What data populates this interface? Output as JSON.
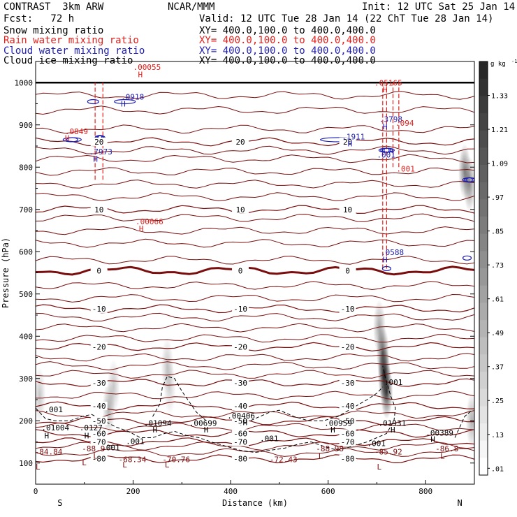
{
  "header": {
    "model": "CONTRAST  3km ARW",
    "org": "NCAR/MMM",
    "init": "Init: 12 UTC Sat 25 Jan 14",
    "fcst": "Fcst:   72 h",
    "valid": "Valid: 12 UTC Tue 28 Jan 14 (22 ChT Tue 28 Jan 14)",
    "fields": [
      {
        "label": "Snow mixing ratio",
        "xy": "XY= 400.0,100.0 to 400.0,400.0",
        "color": "#000000"
      },
      {
        "label": "Rain water mixing ratio",
        "xy": "XY= 400.0,100.0 to 400.0,400.0",
        "color": "#e0201c"
      },
      {
        "label": "Cloud water mixing ratio",
        "xy": "XY= 400.0,100.0 to 400.0,400.0",
        "color": "#1e1eb4"
      },
      {
        "label": "Cloud ice mixing ratio",
        "xy": "XY= 400.0,100.0 to 400.0,400.0",
        "color": "#000000"
      }
    ]
  },
  "chart_data": {
    "type": "heatmap",
    "title": "",
    "xlabel": "Distance (km)",
    "ylabel": "Pressure (hPa)",
    "xlim": [
      0,
      900
    ],
    "ylim": [
      1050,
      50
    ],
    "x_ticks": [
      0,
      200,
      400,
      600,
      800
    ],
    "y_ticks": [
      100,
      200,
      300,
      400,
      500,
      600,
      700,
      800,
      900,
      1000
    ],
    "x_end_labels": {
      "left": "S",
      "right": "N"
    },
    "colorbar": {
      "unit": "g kg",
      "unit_sup": "-1",
      "levels": [
        "1.33",
        "1.21",
        "1.09",
        ".97",
        ".85",
        ".73",
        ".61",
        ".49",
        ".37",
        ".25",
        ".13",
        ".01"
      ]
    },
    "colors": {
      "temperature": "#7a0e0e",
      "rain": "#e0201c",
      "cloud_water": "#1e1eb4",
      "ice": "#000000"
    },
    "snow_shading": [
      {
        "x": 715,
        "p": 310,
        "intensity": 0.95
      },
      {
        "x": 720,
        "p": 270,
        "intensity": 0.85
      },
      {
        "x": 712,
        "p": 360,
        "intensity": 0.7
      },
      {
        "x": 705,
        "p": 420,
        "intensity": 0.4
      },
      {
        "x": 150,
        "p": 230,
        "intensity": 0.35
      },
      {
        "x": 160,
        "p": 280,
        "intensity": 0.25
      },
      {
        "x": 270,
        "p": 330,
        "intensity": 0.25
      },
      {
        "x": 275,
        "p": 280,
        "intensity": 0.2
      },
      {
        "x": 8,
        "p": 260,
        "intensity": 0.25
      },
      {
        "x": 895,
        "p": 200,
        "intensity": 0.35
      },
      {
        "x": 880,
        "p": 790,
        "intensity": 0.55
      },
      {
        "x": 890,
        "p": 760,
        "intensity": 0.5
      }
    ],
    "temperature_isotherms": [
      {
        "label": "-80",
        "p": 110,
        "heavy": false
      },
      {
        "label": "-70",
        "p": 150,
        "heavy": false
      },
      {
        "label": "-60",
        "p": 170,
        "heavy": false
      },
      {
        "label": "-50",
        "p": 200,
        "heavy": false
      },
      {
        "label": "-40",
        "p": 235,
        "heavy": false
      },
      {
        "label": "-30",
        "p": 290,
        "heavy": false
      },
      {
        "label": "-20",
        "p": 375,
        "heavy": false
      },
      {
        "label": "-10",
        "p": 465,
        "heavy": false
      },
      {
        "label": "0",
        "p": 555,
        "heavy": true
      },
      {
        "label": "10",
        "p": 700,
        "heavy": false
      },
      {
        "label": "20",
        "p": 860,
        "heavy": false
      }
    ],
    "extra_isotherm_levels": [
      125,
      140,
      185,
      215,
      260,
      310,
      330,
      350,
      395,
      420,
      445,
      490,
      520,
      580,
      620,
      650,
      680,
      730,
      760,
      790,
      820,
      840,
      890,
      935,
      970
    ],
    "text_labels": [
      {
        "text": "-84.84",
        "x": -2,
        "p": 120,
        "color": "#7a0e0e"
      },
      {
        "text": "-88.9",
        "x": 95,
        "p": 128,
        "color": "#7a0e0e"
      },
      {
        "text": "-68.34",
        "x": 170,
        "p": 102,
        "color": "#7a0e0e"
      },
      {
        "text": "-70.76",
        "x": 260,
        "p": 102,
        "color": "#7a0e0e"
      },
      {
        "text": "-72.43",
        "x": 480,
        "p": 102,
        "color": "#7a0e0e"
      },
      {
        "text": "-88.98",
        "x": 575,
        "p": 128,
        "color": "#7a0e0e"
      },
      {
        "text": "-85.92",
        "x": 695,
        "p": 120,
        "color": "#7a0e0e"
      },
      {
        "text": "-86.8",
        "x": 820,
        "p": 128,
        "color": "#7a0e0e"
      },
      {
        "text": ".001",
        "x": 135,
        "p": 130,
        "color": "#000000"
      },
      {
        "text": ".001",
        "x": 185,
        "p": 145,
        "color": "#000000"
      },
      {
        "text": ".001",
        "x": 460,
        "p": 152,
        "color": "#000000"
      },
      {
        "text": ".001",
        "x": 680,
        "p": 140,
        "color": "#000000"
      },
      {
        "text": ".01004",
        "x": 12,
        "p": 177,
        "color": "#000000"
      },
      {
        "text": ".0127",
        "x": 90,
        "p": 177,
        "color": "#000000"
      },
      {
        "text": ".01094",
        "x": 222,
        "p": 188,
        "color": "#000000"
      },
      {
        "text": ".00699",
        "x": 315,
        "p": 188,
        "color": "#000000"
      },
      {
        "text": ".00406",
        "x": 393,
        "p": 205,
        "color": "#000000"
      },
      {
        "text": ".00959",
        "x": 592,
        "p": 188,
        "color": "#000000"
      },
      {
        "text": ".01931",
        "x": 703,
        "p": 188,
        "color": "#000000"
      },
      {
        "text": ".00389",
        "x": 800,
        "p": 165,
        "color": "#000000"
      },
      {
        "text": ".001",
        "x": 18,
        "p": 220,
        "color": "#000000"
      },
      {
        "text": ".001",
        "x": 715,
        "p": 285,
        "color": "#000000"
      },
      {
        "text": ".0588",
        "x": 708,
        "p": 592,
        "color": "#1e1eb4"
      },
      {
        "text": ".00066",
        "x": 205,
        "p": 665,
        "color": "#e0201c"
      },
      {
        "text": ".7973",
        "x": 110,
        "p": 830,
        "color": "#1e1eb4"
      },
      {
        "text": ".0849",
        "x": 60,
        "p": 878,
        "color": "#e0201c"
      },
      {
        "text": ".1911",
        "x": 628,
        "p": 866,
        "color": "#1e1eb4"
      },
      {
        "text": ".001",
        "x": 700,
        "p": 823,
        "color": "#1e1eb4"
      },
      {
        "text": ".001",
        "x": 740,
        "p": 790,
        "color": "#e0201c"
      },
      {
        "text": ".3798",
        "x": 705,
        "p": 907,
        "color": "#1e1eb4"
      },
      {
        "text": ".094",
        "x": 738,
        "p": 898,
        "color": "#e0201c"
      },
      {
        "text": ".05165",
        "x": 695,
        "p": 993,
        "color": "#e0201c"
      },
      {
        "text": ".0918",
        "x": 175,
        "p": 960,
        "color": "#1e1eb4"
      },
      {
        "text": ".00055",
        "x": 200,
        "p": 1030,
        "color": "#e0201c"
      }
    ],
    "extrema": [
      {
        "text": "L",
        "x": 0,
        "p": 85,
        "color": "#7a0e0e"
      },
      {
        "text": "L",
        "x": 95,
        "p": 95,
        "color": "#7a0e0e"
      },
      {
        "text": "L",
        "x": 118,
        "p": 110,
        "color": "#7a0e0e"
      },
      {
        "text": "L",
        "x": 178,
        "p": 90,
        "color": "#7a0e0e"
      },
      {
        "text": "L",
        "x": 265,
        "p": 90,
        "color": "#7a0e0e"
      },
      {
        "text": "L",
        "x": 580,
        "p": 110,
        "color": "#7a0e0e"
      },
      {
        "text": "L",
        "x": 700,
        "p": 85,
        "color": "#7a0e0e"
      },
      {
        "text": "L",
        "x": 830,
        "p": 110,
        "color": "#7a0e0e"
      },
      {
        "text": "H",
        "x": 18,
        "p": 158,
        "color": "#000000"
      },
      {
        "text": "H",
        "x": 100,
        "p": 158,
        "color": "#000000"
      },
      {
        "text": "H",
        "x": 240,
        "p": 172,
        "color": "#000000"
      },
      {
        "text": "H",
        "x": 345,
        "p": 172,
        "color": "#000000"
      },
      {
        "text": "H",
        "x": 425,
        "p": 190,
        "color": "#000000"
      },
      {
        "text": "H",
        "x": 605,
        "p": 172,
        "color": "#000000"
      },
      {
        "text": "H",
        "x": 728,
        "p": 172,
        "color": "#000000"
      },
      {
        "text": "H",
        "x": 810,
        "p": 150,
        "color": "#000000"
      },
      {
        "text": "H",
        "x": 712,
        "p": 575,
        "color": "#1e1eb4"
      },
      {
        "text": "H",
        "x": 212,
        "p": 648,
        "color": "#e0201c"
      },
      {
        "text": "H",
        "x": 118,
        "p": 813,
        "color": "#1e1eb4"
      },
      {
        "text": "H",
        "x": 60,
        "p": 862,
        "color": "#e0201c"
      },
      {
        "text": "H",
        "x": 640,
        "p": 849,
        "color": "#1e1eb4"
      },
      {
        "text": "H",
        "x": 712,
        "p": 890,
        "color": "#1e1eb4"
      },
      {
        "text": "H",
        "x": 712,
        "p": 977,
        "color": "#e0201c"
      },
      {
        "text": "H",
        "x": 175,
        "p": 943,
        "color": "#1e1eb4"
      },
      {
        "text": "H",
        "x": 210,
        "p": 1013,
        "color": "#e0201c"
      }
    ],
    "ice_contour": [
      [
        0,
        230
      ],
      [
        20,
        205
      ],
      [
        40,
        200
      ],
      [
        70,
        200
      ],
      [
        95,
        210
      ],
      [
        115,
        215
      ],
      [
        140,
        200
      ],
      [
        165,
        185
      ],
      [
        190,
        175
      ],
      [
        215,
        160
      ],
      [
        240,
        160
      ],
      [
        265,
        170
      ],
      [
        285,
        175
      ],
      [
        310,
        165
      ],
      [
        335,
        160
      ],
      [
        360,
        150
      ],
      [
        390,
        140
      ],
      [
        420,
        130
      ],
      [
        450,
        125
      ],
      [
        480,
        130
      ],
      [
        510,
        135
      ],
      [
        540,
        145
      ],
      [
        565,
        150
      ],
      [
        590,
        140
      ],
      [
        620,
        130
      ],
      [
        650,
        140
      ],
      [
        680,
        150
      ],
      [
        700,
        160
      ],
      [
        720,
        170
      ],
      [
        735,
        200
      ],
      [
        738,
        230
      ],
      [
        728,
        260
      ],
      [
        718,
        300
      ],
      [
        712,
        330
      ]
    ],
    "ice_contour_2": [
      [
        420,
        190
      ],
      [
        450,
        205
      ],
      [
        480,
        220
      ],
      [
        500,
        225
      ],
      [
        530,
        210
      ],
      [
        560,
        200
      ],
      [
        590,
        200
      ],
      [
        620,
        210
      ],
      [
        650,
        230
      ],
      [
        680,
        250
      ],
      [
        700,
        265
      ],
      [
        712,
        280
      ]
    ],
    "ice_contour_3": [
      [
        240,
        210
      ],
      [
        255,
        240
      ],
      [
        260,
        280
      ],
      [
        270,
        305
      ],
      [
        285,
        300
      ],
      [
        300,
        270
      ],
      [
        315,
        245
      ],
      [
        330,
        220
      ],
      [
        350,
        200
      ]
    ],
    "ice_contour_4": [
      [
        860,
        160
      ],
      [
        870,
        185
      ],
      [
        880,
        210
      ],
      [
        895,
        225
      ]
    ],
    "rain_dashed": [
      {
        "x": 122,
        "p_top": 770,
        "p_bottom": 1000
      },
      {
        "x": 138,
        "p_top": 770,
        "p_bottom": 1000
      },
      {
        "x": 712,
        "p_top": 560,
        "p_bottom": 1000
      },
      {
        "x": 720,
        "p_top": 560,
        "p_bottom": 1000
      },
      {
        "x": 733,
        "p_top": 800,
        "p_bottom": 1000
      },
      {
        "x": 745,
        "p_top": 800,
        "p_bottom": 1000
      }
    ],
    "cloud_water_blobs": [
      {
        "x": 132,
        "p": 870,
        "w": 14,
        "h": 150,
        "rings": 4
      },
      {
        "x": 75,
        "p": 865,
        "w": 26,
        "h": 70,
        "rings": 2
      },
      {
        "x": 118,
        "p": 955,
        "w": 16,
        "h": 25,
        "rings": 1
      },
      {
        "x": 183,
        "p": 955,
        "w": 30,
        "h": 35,
        "rings": 1
      },
      {
        "x": 620,
        "p": 865,
        "w": 50,
        "h": 90,
        "rings": 1
      },
      {
        "x": 720,
        "p": 840,
        "w": 22,
        "h": 170,
        "rings": 4
      },
      {
        "x": 720,
        "p": 560,
        "w": 12,
        "h": 60,
        "rings": 1
      },
      {
        "x": 890,
        "p": 770,
        "w": 20,
        "h": 130,
        "rings": 3
      },
      {
        "x": 885,
        "p": 585,
        "w": 12,
        "h": 60,
        "rings": 1
      }
    ],
    "surface": {
      "p": 1000
    }
  }
}
